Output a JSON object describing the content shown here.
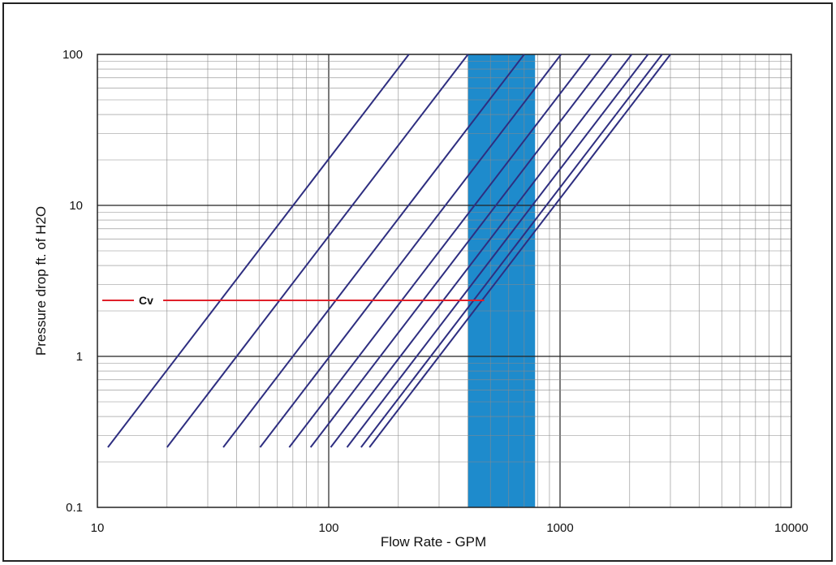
{
  "chart_data": {
    "type": "line",
    "title": "",
    "xlabel": "Flow Rate - GPM",
    "ylabel": "Pressure drop ft. of H2O",
    "xscale": "log",
    "yscale": "log",
    "xlim": [
      10,
      10000
    ],
    "ylim": [
      0.1,
      100
    ],
    "x_ticks": [
      {
        "value": 10,
        "label": "10"
      },
      {
        "value": 100,
        "label": "100"
      },
      {
        "value": 1000,
        "label": "1000"
      },
      {
        "value": 10000,
        "label": "10000"
      }
    ],
    "y_ticks": [
      {
        "value": 0.1,
        "label": "0.1"
      },
      {
        "value": 1,
        "label": "1"
      },
      {
        "value": 10,
        "label": "10"
      },
      {
        "value": 100,
        "label": "100"
      }
    ],
    "grid": true,
    "series_color": "#2e2e80",
    "series": [
      {
        "x": [
          11.1,
          222
        ],
        "y": [
          0.25,
          100
        ]
      },
      {
        "x": [
          20,
          400
        ],
        "y": [
          0.25,
          100
        ]
      },
      {
        "x": [
          35,
          700
        ],
        "y": [
          0.25,
          100
        ]
      },
      {
        "x": [
          50.5,
          1010
        ],
        "y": [
          0.25,
          100
        ]
      },
      {
        "x": [
          67.5,
          1350
        ],
        "y": [
          0.25,
          100
        ]
      },
      {
        "x": [
          83.5,
          1670
        ],
        "y": [
          0.25,
          100
        ]
      },
      {
        "x": [
          102,
          2040
        ],
        "y": [
          0.25,
          100
        ]
      },
      {
        "x": [
          120,
          2400
        ],
        "y": [
          0.25,
          100
        ]
      },
      {
        "x": [
          138,
          2760
        ],
        "y": [
          0.25,
          100
        ]
      },
      {
        "x": [
          150,
          3000
        ],
        "y": [
          0.25,
          100
        ]
      }
    ],
    "highlight_band": {
      "x": [
        400,
        780
      ],
      "color": "#1e8bcc"
    },
    "annotation": {
      "label": "Cv",
      "y": 2.35,
      "x_start": 10.5,
      "x_end": 470,
      "color": "#e0202a"
    }
  }
}
